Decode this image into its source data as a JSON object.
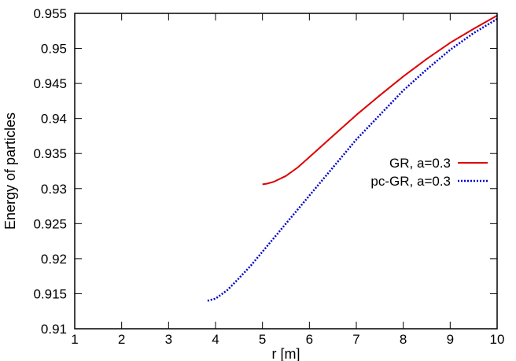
{
  "chart_data": {
    "type": "line",
    "title": "",
    "xlabel": "r [m]",
    "ylabel": "Energy of particles",
    "xlim": [
      1,
      10
    ],
    "ylim": [
      0.91,
      0.955
    ],
    "xticks": [
      1,
      2,
      3,
      4,
      5,
      6,
      7,
      8,
      9,
      10
    ],
    "yticks": [
      0.91,
      0.915,
      0.92,
      0.925,
      0.93,
      0.935,
      0.94,
      0.945,
      0.95,
      0.955
    ],
    "yticklabels": [
      "0.91",
      "0.915",
      "0.92",
      "0.925",
      "0.93",
      "0.935",
      "0.94",
      "0.945",
      "0.95",
      "0.955"
    ],
    "grid": false,
    "legend_position": "right",
    "series": [
      {
        "name": "GR, a=0.3",
        "color": "#dd0000",
        "style": "solid",
        "x": [
          5.0,
          5.1,
          5.25,
          5.5,
          5.75,
          6.0,
          6.5,
          7.0,
          7.5,
          8.0,
          8.5,
          9.0,
          9.5,
          10.0
        ],
        "y": [
          0.9306,
          0.9307,
          0.931,
          0.9318,
          0.933,
          0.9345,
          0.9375,
          0.9405,
          0.9433,
          0.946,
          0.9485,
          0.9508,
          0.9528,
          0.9547
        ]
      },
      {
        "name": "pc-GR, a=0.3",
        "color": "#0000cc",
        "style": "dotted",
        "x": [
          3.83,
          4.0,
          4.25,
          4.5,
          4.75,
          5.0,
          5.5,
          6.0,
          6.5,
          7.0,
          7.5,
          8.0,
          8.5,
          9.0,
          9.5,
          10.0
        ],
        "y": [
          0.914,
          0.9143,
          0.9155,
          0.9172,
          0.919,
          0.921,
          0.925,
          0.929,
          0.933,
          0.937,
          0.9405,
          0.944,
          0.947,
          0.9498,
          0.9522,
          0.9542
        ]
      }
    ]
  }
}
